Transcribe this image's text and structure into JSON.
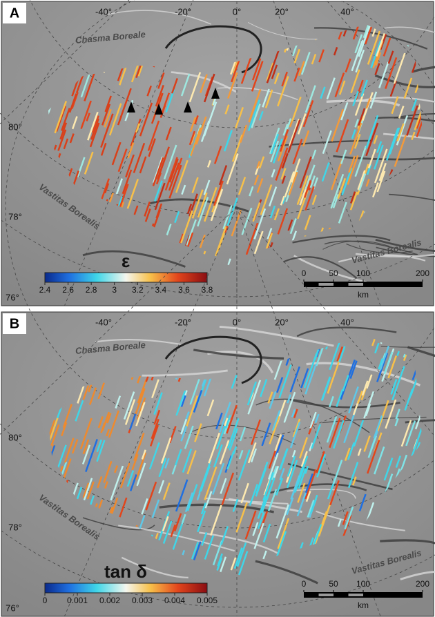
{
  "panels": [
    {
      "label": "A",
      "longitudes": [
        "-40°",
        "-20°",
        "0°",
        "20°",
        "40°"
      ],
      "latitudes": [
        "80°",
        "78°",
        "76°"
      ],
      "regions": [
        "Chasma Boreale",
        "Vastitas Borealis",
        "Vastitas Borealis"
      ],
      "colorbar_title": "ε",
      "colorbar_ticks": [
        2.4,
        2.6,
        2.8,
        3,
        3.2,
        3.4,
        3.6,
        3.8
      ],
      "scale_ticks": [
        0,
        50,
        100,
        200
      ],
      "scale_unit": "km"
    },
    {
      "label": "B",
      "longitudes": [
        "-40°",
        "-20°",
        "0°",
        "20°",
        "40°"
      ],
      "latitudes": [
        "80°",
        "78°",
        "76°"
      ],
      "regions": [
        "Chasma Boreale",
        "Vastitas Borealis",
        "Vastitas Borealis"
      ],
      "colorbar_title": "tan δ",
      "colorbar_ticks": [
        0,
        0.001,
        0.002,
        0.003,
        0.004,
        0.005
      ],
      "scale_ticks": [
        0,
        50,
        100,
        200
      ],
      "scale_unit": "km"
    }
  ]
}
